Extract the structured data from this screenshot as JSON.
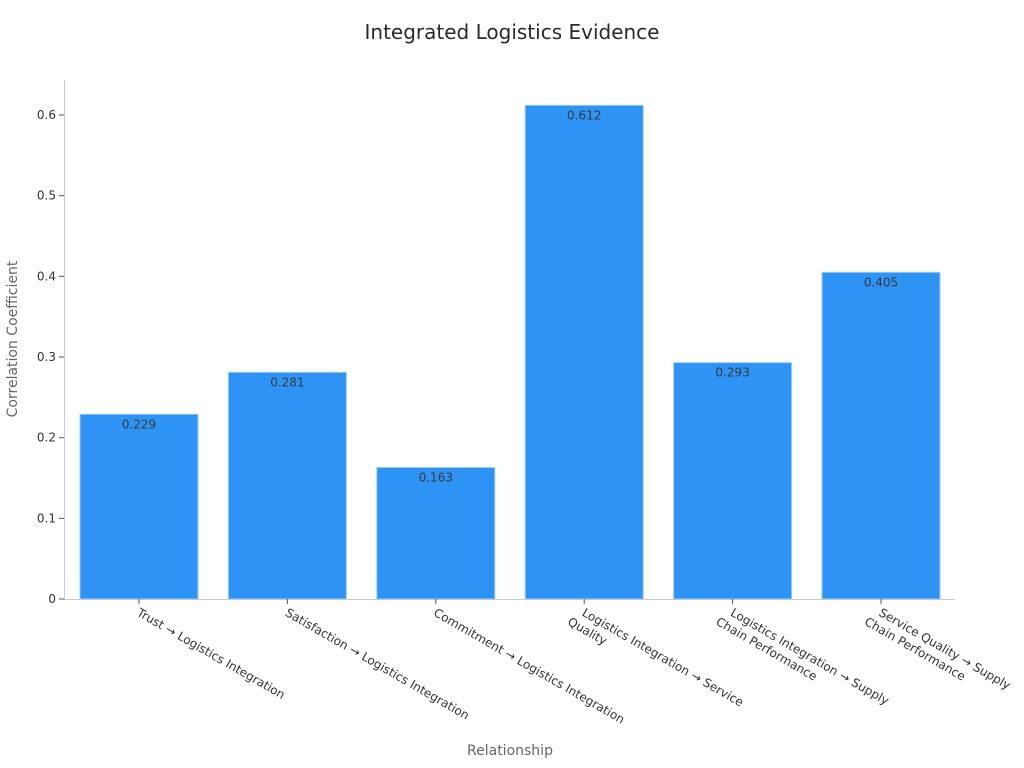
{
  "chart_data": {
    "type": "bar",
    "title": "Integrated Logistics Evidence",
    "xlabel": "Relationship",
    "ylabel": "Correlation Coefficient",
    "categories": [
      [
        "Trust → Logistics Integration"
      ],
      [
        "Satisfaction → Logistics Integration"
      ],
      [
        "Commitment → Logistics Integration"
      ],
      [
        "Logistics Integration → Service",
        "Quality"
      ],
      [
        "Logistics Integration → Supply",
        "Chain Performance"
      ],
      [
        "Service Quality → Supply",
        "Chain Performance"
      ]
    ],
    "values": [
      0.229,
      0.281,
      0.163,
      0.612,
      0.293,
      0.405
    ],
    "data_labels": [
      "0.229",
      "0.281",
      "0.163",
      "0.612",
      "0.293",
      "0.405"
    ],
    "yticks": [
      "0",
      "0.1",
      "0.2",
      "0.3",
      "0.4",
      "0.5",
      "0.6"
    ],
    "ylim": [
      0,
      0.645
    ],
    "bar_color": "#2d93f5",
    "grid": false,
    "legend": "none"
  }
}
